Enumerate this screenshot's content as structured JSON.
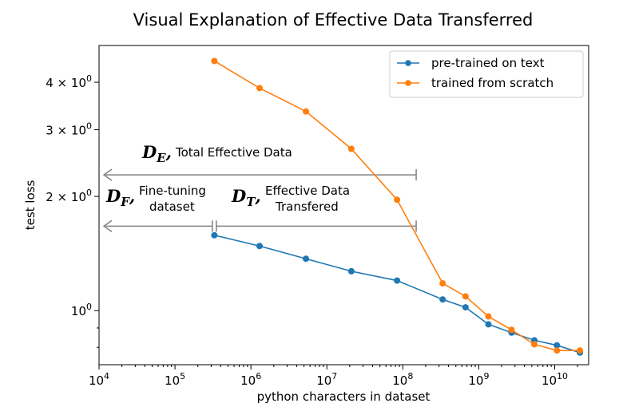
{
  "chart_data": {
    "type": "line",
    "title": "Visual Explanation of Effective Data Transferred",
    "xlabel": "python characters in dataset",
    "ylabel": "test loss",
    "xscale": "log",
    "yscale": "log",
    "xlim": [
      10000,
      28000000000
    ],
    "ylim": [
      0.72,
      5.0
    ],
    "grid": false,
    "legend_position": "top-right",
    "x_ticks": [
      {
        "value": 10000,
        "base": "10",
        "exp": "4"
      },
      {
        "value": 100000,
        "base": "10",
        "exp": "5"
      },
      {
        "value": 1000000,
        "base": "10",
        "exp": "6"
      },
      {
        "value": 10000000,
        "base": "10",
        "exp": "7"
      },
      {
        "value": 100000000,
        "base": "10",
        "exp": "8"
      },
      {
        "value": 1000000000,
        "base": "10",
        "exp": "9"
      },
      {
        "value": 10000000000,
        "base": "10",
        "exp": "10"
      }
    ],
    "y_ticks": [
      {
        "value": 1,
        "prefix": "10",
        "exp": "0"
      },
      {
        "value": 2,
        "prefix": "2 × 10",
        "exp": "0"
      },
      {
        "value": 3,
        "prefix": "3 × 10",
        "exp": "0"
      },
      {
        "value": 4,
        "prefix": "4 × 10",
        "exp": "0"
      }
    ],
    "series": [
      {
        "name": "pre-trained on text",
        "color": "#1f77b4",
        "x": [
          330000,
          1300000,
          5300000,
          21000000,
          84000000,
          335000000,
          670000000,
          1340000000,
          2700000000,
          5400000000,
          10700000000,
          21500000000
        ],
        "y": [
          1.58,
          1.48,
          1.37,
          1.27,
          1.2,
          1.07,
          1.02,
          0.92,
          0.875,
          0.835,
          0.81,
          0.775
        ]
      },
      {
        "name": "trained from scratch",
        "color": "#ff7f0e",
        "x": [
          330000,
          1300000,
          5300000,
          21000000,
          84000000,
          335000000,
          670000000,
          1340000000,
          2700000000,
          5400000000,
          10700000000,
          21500000000
        ],
        "y": [
          4.55,
          3.86,
          3.35,
          2.67,
          1.96,
          1.18,
          1.09,
          0.965,
          0.89,
          0.815,
          0.785,
          0.785
        ]
      }
    ],
    "annotations": [
      {
        "symbol": "D",
        "subscript": "E",
        "label": "Total Effective Data",
        "line_x": [
          10000,
          150000000
        ],
        "line_y": 2.28
      },
      {
        "symbol": "D",
        "subscript": "F",
        "label_line1": "Fine-tuning",
        "label_line2": "dataset",
        "line_x": [
          10000,
          350000
        ],
        "line_y": 1.67
      },
      {
        "symbol": "D",
        "subscript": "T",
        "label_line1": "Effective Data",
        "label_line2": "Transfered",
        "line_x": [
          350000,
          150000000
        ],
        "line_y": 1.67
      }
    ]
  }
}
